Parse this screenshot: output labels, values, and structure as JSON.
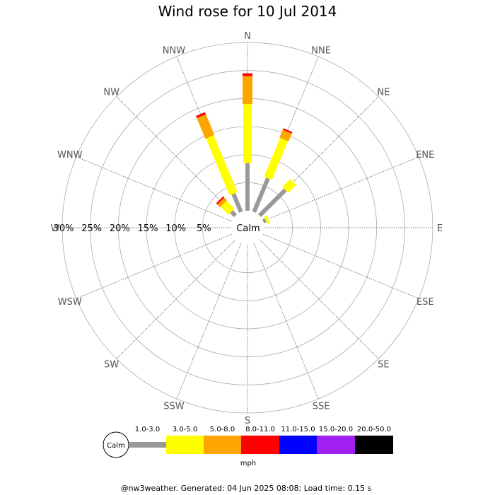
{
  "chart_data": {
    "type": "wind-rose",
    "title": "Wind rose for 10 Jul 2014",
    "directions": [
      "N",
      "NNE",
      "NE",
      "ENE",
      "E",
      "ESE",
      "SE",
      "SSE",
      "S",
      "SSW",
      "SW",
      "WSW",
      "W",
      "WNW",
      "NW",
      "NNW"
    ],
    "radial_axis": {
      "ticks": [
        5,
        10,
        15,
        20,
        25,
        30
      ],
      "tick_labels": [
        "5%",
        "10%",
        "15%",
        "20%",
        "25%",
        "30%"
      ],
      "max": 30
    },
    "speed_bins": [
      {
        "label": "1.0-3.0",
        "color": "#999999"
      },
      {
        "label": "3.0-5.0",
        "color": "#ffff00"
      },
      {
        "label": "5.0-8.0",
        "color": "#ffa500"
      },
      {
        "label": "8.0-11.0",
        "color": "#ff0000"
      },
      {
        "label": "11.0-15.0",
        "color": "#0000ff"
      },
      {
        "label": "15.0-20.0",
        "color": "#a020f0"
      },
      {
        "label": "20.0-50.0",
        "color": "#000000"
      }
    ],
    "unit": "mph",
    "calm_label": "Calm",
    "series": [
      {
        "direction": "N",
        "values": [
          8.5,
          10.5,
          5.0,
          0.5,
          0,
          0,
          0
        ]
      },
      {
        "direction": "NNE",
        "values": [
          6.5,
          7.5,
          1.5,
          0.3,
          0,
          0,
          0
        ]
      },
      {
        "direction": "NE",
        "values": [
          6.5,
          2.0,
          0,
          0,
          0,
          0,
          0
        ]
      },
      {
        "direction": "ENE",
        "values": [
          0.5,
          0.5,
          0,
          0,
          0,
          0,
          0
        ]
      },
      {
        "direction": "E",
        "values": [
          0,
          0,
          0,
          0,
          0,
          0,
          0
        ]
      },
      {
        "direction": "ESE",
        "values": [
          0,
          0,
          0,
          0,
          0,
          0,
          0
        ]
      },
      {
        "direction": "SE",
        "values": [
          0,
          0,
          0,
          0,
          0,
          0,
          0
        ]
      },
      {
        "direction": "SSE",
        "values": [
          0,
          0,
          0,
          0,
          0,
          0,
          0
        ]
      },
      {
        "direction": "S",
        "values": [
          0,
          0,
          0,
          0,
          0,
          0,
          0
        ]
      },
      {
        "direction": "SSW",
        "values": [
          0,
          0,
          0,
          0,
          0,
          0,
          0
        ]
      },
      {
        "direction": "SW",
        "values": [
          0,
          0,
          0,
          0,
          0,
          0,
          0
        ]
      },
      {
        "direction": "WSW",
        "values": [
          0,
          0,
          0,
          0,
          0,
          0,
          0
        ]
      },
      {
        "direction": "W",
        "values": [
          0,
          0,
          0,
          0,
          0,
          0,
          0
        ]
      },
      {
        "direction": "WNW",
        "values": [
          0,
          0,
          0,
          0,
          0,
          0,
          0
        ]
      },
      {
        "direction": "NW",
        "values": [
          1.0,
          2.0,
          0.7,
          0.3,
          0,
          0,
          0
        ]
      },
      {
        "direction": "NNW",
        "values": [
          3.5,
          11.0,
          4.0,
          0.4,
          0,
          0,
          0
        ]
      }
    ]
  },
  "footer": "@nw3weather. Generated: 04 Jun 2025 08:08; Load time: 0.15 s"
}
